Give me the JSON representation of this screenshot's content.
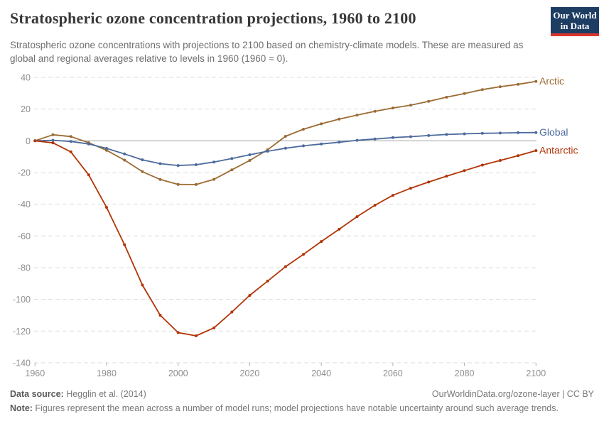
{
  "header": {
    "title": "Stratospheric ozone concentration projections, 1960 to 2100",
    "subtitle": "Stratospheric ozone concentrations with projections to 2100 based on chemistry-climate models. These are measured as global and regional averages relative to levels in 1960 (1960 = 0).",
    "logo": {
      "line1": "Our World",
      "line2": "in Data"
    }
  },
  "footer": {
    "source_label": "Data source:",
    "source_text": " Hegglin et al. (2014)",
    "link_text": "OurWorldinData.org/ozone-layer | CC BY",
    "note_label": "Note:",
    "note_text": " Figures represent the mean across a number of model runs; model projections have notable uncertainty around such average trends."
  },
  "colors": {
    "arctic": "#9c6b34",
    "global": "#4c6a9c",
    "antarctic": "#b13507",
    "zero_line": "#a3a3a3",
    "gridline": "#dcdcdc",
    "tick_text": "#8f8f8f"
  },
  "chart_data": {
    "type": "line",
    "title": "Stratospheric ozone concentration projections, 1960 to 2100",
    "xlabel": "",
    "ylabel": "",
    "xlim": [
      1960,
      2100
    ],
    "ylim": [
      -140,
      40
    ],
    "xticks": [
      1960,
      1980,
      2000,
      2020,
      2040,
      2060,
      2080,
      2100
    ],
    "yticks": [
      40,
      20,
      0,
      -20,
      -40,
      -60,
      -80,
      -100,
      -120,
      -140
    ],
    "grid": "horizontal-dashed",
    "legend_position": "end-of-line-right",
    "x": [
      1960,
      1965,
      1970,
      1975,
      1980,
      1985,
      1990,
      1995,
      2000,
      2005,
      2010,
      2015,
      2020,
      2025,
      2030,
      2035,
      2040,
      2045,
      2050,
      2055,
      2060,
      2065,
      2070,
      2075,
      2080,
      2085,
      2090,
      2095,
      2100
    ],
    "series": [
      {
        "name": "Arctic",
        "color": "#9c6b34",
        "values": [
          0,
          3.8,
          2.7,
          -1.2,
          -6,
          -12.2,
          -19.5,
          -24.4,
          -27.5,
          -27.6,
          -24.3,
          -18.3,
          -12.4,
          -5.7,
          2.8,
          7.3,
          10.7,
          13.7,
          16.2,
          18.6,
          20.7,
          22.5,
          24.9,
          27.5,
          29.8,
          32.3,
          34.1,
          35.6,
          37.5
        ]
      },
      {
        "name": "Global",
        "color": "#4c6a9c",
        "values": [
          0,
          0.3,
          -0.4,
          -2,
          -4.8,
          -8.3,
          -12,
          -14.4,
          -15.6,
          -15.1,
          -13.4,
          -11.2,
          -8.8,
          -6.6,
          -4.7,
          -3.2,
          -2,
          -0.9,
          0.3,
          1.1,
          2,
          2.6,
          3.3,
          4,
          4.4,
          4.7,
          4.9,
          5.1,
          5.2
        ]
      },
      {
        "name": "Antarctic",
        "color": "#b13507",
        "values": [
          0,
          -1.3,
          -7,
          -21.5,
          -42,
          -65.5,
          -91,
          -110,
          -121,
          -123,
          -118,
          -108,
          -97.5,
          -88.5,
          -79.4,
          -71.6,
          -63.5,
          -55.8,
          -47.8,
          -40.6,
          -34.4,
          -29.9,
          -26,
          -22.3,
          -18.8,
          -15.3,
          -12.4,
          -9.4,
          -6.2
        ]
      }
    ]
  }
}
